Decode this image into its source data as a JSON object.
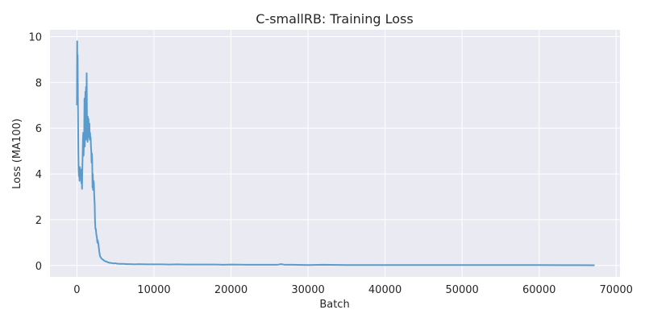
{
  "chart_data": {
    "type": "line",
    "title": "C-smallRB: Training Loss",
    "xlabel": "Batch",
    "ylabel": "Loss (MA100)",
    "xlim": [
      -3500,
      70500
    ],
    "ylim": [
      -0.5,
      10.3
    ],
    "x_ticks": [
      0,
      10000,
      20000,
      30000,
      40000,
      50000,
      60000,
      70000
    ],
    "y_ticks": [
      0,
      2,
      4,
      6,
      8,
      10
    ],
    "grid": true,
    "legend": "none",
    "colors": {
      "line": "#5b9bcb",
      "plot_bg": "#eaeaf2",
      "grid": "#ffffff"
    },
    "series": [
      {
        "x": [
          0,
          30,
          60,
          90,
          120,
          150,
          180,
          220,
          260,
          300,
          340,
          380,
          420,
          460,
          500,
          540,
          580,
          620,
          660,
          700,
          740,
          780,
          820,
          860,
          900,
          940,
          980,
          1020,
          1060,
          1100,
          1140,
          1180,
          1220,
          1260,
          1300,
          1340,
          1380,
          1420,
          1460,
          1500,
          1540,
          1580,
          1620,
          1660,
          1700,
          1740,
          1780,
          1820,
          1860,
          1900,
          1940,
          1980,
          2020,
          2060,
          2100,
          2150,
          2200,
          2250,
          2300,
          2350,
          2400,
          2450,
          2500,
          2550,
          2600,
          2650,
          2700,
          2800,
          2900,
          3000,
          3100,
          3200,
          3300,
          3400,
          3500,
          3600,
          3700,
          3800,
          3900,
          4000,
          4200,
          4400,
          4600,
          4800,
          5000,
          5200,
          5500,
          6000,
          6500,
          7000,
          7500,
          8000,
          9000,
          10000,
          11000,
          12000,
          13000,
          14000,
          15000,
          16000,
          17000,
          18000,
          19000,
          20000,
          22000,
          24000,
          26000,
          26500,
          27000,
          28000,
          30000,
          32000,
          35000,
          38000,
          40000,
          42000,
          45000,
          48000,
          50000,
          53000,
          55000,
          58000,
          60000,
          63000,
          65000,
          67200
        ],
        "y": [
          7.0,
          9.8,
          7.2,
          9.2,
          7.5,
          6.2,
          5.0,
          4.2,
          3.9,
          4.0,
          3.7,
          4.3,
          3.8,
          4.2,
          3.9,
          4.1,
          3.6,
          4.2,
          3.35,
          4.3,
          4.8,
          5.5,
          5.8,
          4.8,
          5.3,
          5.7,
          7.3,
          5.2,
          6.8,
          7.6,
          6.0,
          7.8,
          5.5,
          8.4,
          6.5,
          6.2,
          5.4,
          6.5,
          5.7,
          6.4,
          5.8,
          5.6,
          6.2,
          5.5,
          5.8,
          5.6,
          5.6,
          5.2,
          5.0,
          4.5,
          4.9,
          4.6,
          3.4,
          4.0,
          3.3,
          3.7,
          3.6,
          3.0,
          2.7,
          1.9,
          1.6,
          1.6,
          1.4,
          1.3,
          1.2,
          1.0,
          1.1,
          0.9,
          0.6,
          0.4,
          0.35,
          0.3,
          0.27,
          0.25,
          0.22,
          0.2,
          0.18,
          0.17,
          0.16,
          0.14,
          0.12,
          0.11,
          0.1,
          0.09,
          0.1,
          0.08,
          0.07,
          0.07,
          0.06,
          0.06,
          0.05,
          0.06,
          0.05,
          0.05,
          0.05,
          0.04,
          0.05,
          0.04,
          0.04,
          0.04,
          0.04,
          0.04,
          0.03,
          0.04,
          0.03,
          0.03,
          0.03,
          0.06,
          0.03,
          0.03,
          0.02,
          0.03,
          0.02,
          0.02,
          0.02,
          0.02,
          0.02,
          0.02,
          0.02,
          0.02,
          0.02,
          0.02,
          0.02,
          0.015,
          0.015,
          0.01
        ]
      }
    ]
  }
}
